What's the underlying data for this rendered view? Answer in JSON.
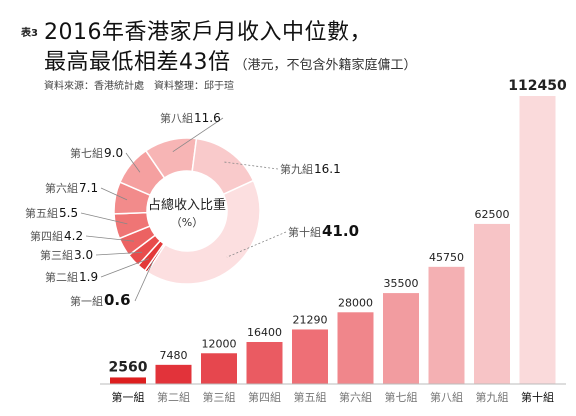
{
  "header": {
    "table_no": "表3",
    "title_line1": "2016年香港家戶月收入中位數，",
    "title_line2": "最高最低相差43倍",
    "title_note": "（港元，不包含外籍家庭傭工）",
    "source": "資料來源：香港統計處",
    "compiled_by": "資料整理：邱于瑄"
  },
  "chart_data": [
    {
      "type": "bar",
      "categories": [
        "第一組",
        "第二組",
        "第三組",
        "第四組",
        "第五組",
        "第六組",
        "第七組",
        "第八組",
        "第九組",
        "第十組"
      ],
      "values": [
        2560,
        7480,
        12000,
        16400,
        21290,
        28000,
        35500,
        45750,
        62500,
        112450
      ],
      "value_labels": [
        "2560",
        "7480",
        "12000",
        "16400",
        "21290",
        "28000",
        "35500",
        "45750",
        "62500",
        "112450"
      ],
      "colors": [
        "#dd1e1e",
        "#e2333a",
        "#e6474e",
        "#ea5b62",
        "#ee6f76",
        "#f0868b",
        "#f29ca0",
        "#f4b0b3",
        "#f7c4c6",
        "#fadadb"
      ],
      "title": "",
      "xlabel": "",
      "ylabel": "",
      "ylim": [
        0,
        112450
      ],
      "grid": false
    },
    {
      "type": "pie",
      "variant": "donut",
      "center_label_line1": "占總收入比重",
      "center_label_line2": "（%）",
      "categories": [
        "第一組",
        "第二組",
        "第三組",
        "第四組",
        "第五組",
        "第六組",
        "第七組",
        "第八組",
        "第九組",
        "第十組"
      ],
      "values": [
        0.6,
        1.9,
        3.0,
        4.2,
        5.5,
        7.1,
        9.0,
        11.6,
        16.1,
        41.0
      ],
      "value_labels": [
        "0.6",
        "1.9",
        "3.0",
        "4.2",
        "5.5",
        "7.1",
        "9.0",
        "11.6",
        "16.1",
        "41.0"
      ],
      "colors": [
        "#c80f12",
        "#e33838",
        "#e84c4c",
        "#ec6262",
        "#ef7575",
        "#f28b8b",
        "#f5a0a0",
        "#f7b5b5",
        "#f9cacb",
        "#fcdfe0"
      ]
    }
  ]
}
